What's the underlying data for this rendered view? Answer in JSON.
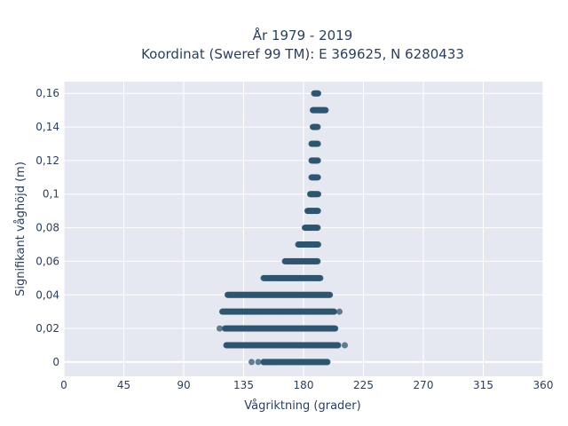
{
  "chart_data": {
    "type": "scatter",
    "title_line1": "År 1979 - 2019",
    "title_line2": "Koordinat (Sweref 99 TM): E 369625, N 6280433",
    "xlabel": "Vågriktning (grader)",
    "ylabel": "Signifikant våghöjd (m)",
    "xlim": [
      0,
      360
    ],
    "ylim": [
      -0.0085,
      0.167
    ],
    "x_ticks": [
      0,
      45,
      90,
      135,
      180,
      225,
      270,
      315,
      360
    ],
    "x_tick_labels": [
      "0",
      "45",
      "90",
      "135",
      "180",
      "225",
      "270",
      "315",
      "360"
    ],
    "y_ticks": [
      0,
      0.02,
      0.04,
      0.06,
      0.08,
      0.1,
      0.12,
      0.14,
      0.16
    ],
    "y_tick_labels": [
      "0",
      "0,02",
      "0,04",
      "0,06",
      "0,08",
      "0,1",
      "0,12",
      "0,14",
      "0,16"
    ],
    "grid": true,
    "colors": {
      "marker": "#2f5570",
      "plot_bg": "#e5e8f1",
      "grid": "#ffffff",
      "text": "#2a3f5f"
    },
    "bands": [
      {
        "y": 0.0,
        "x_min": 150,
        "x_max": 198,
        "sparse": [
          141,
          146,
          150,
          153,
          158
        ]
      },
      {
        "y": 0.01,
        "x_min": 122,
        "x_max": 206,
        "sparse": [
          211
        ]
      },
      {
        "y": 0.02,
        "x_min": 121,
        "x_max": 204,
        "sparse": [
          117
        ]
      },
      {
        "y": 0.03,
        "x_min": 119,
        "x_max": 203,
        "sparse": [
          207
        ]
      },
      {
        "y": 0.04,
        "x_min": 123,
        "x_max": 200,
        "sparse": []
      },
      {
        "y": 0.05,
        "x_min": 150,
        "x_max": 193,
        "sparse": []
      },
      {
        "y": 0.06,
        "x_min": 166,
        "x_max": 191,
        "sparse": []
      },
      {
        "y": 0.07,
        "x_min": 176,
        "x_max": 191,
        "sparse": []
      },
      {
        "y": 0.08,
        "x_min": 181,
        "x_max": 191,
        "sparse": []
      },
      {
        "y": 0.09,
        "x_min": 183,
        "x_max": 191,
        "sparse": []
      },
      {
        "y": 0.1,
        "x_min": 185,
        "x_max": 191,
        "sparse": []
      },
      {
        "y": 0.11,
        "x_min": 186,
        "x_max": 191,
        "sparse": []
      },
      {
        "y": 0.12,
        "x_min": 186,
        "x_max": 191,
        "sparse": []
      },
      {
        "y": 0.13,
        "x_min": 186,
        "x_max": 191,
        "sparse": []
      },
      {
        "y": 0.14,
        "x_min": 187,
        "x_max": 191,
        "sparse": []
      },
      {
        "y": 0.15,
        "x_min": 187,
        "x_max": 197,
        "sparse": []
      },
      {
        "y": 0.16,
        "x_min": 188,
        "x_max": 191,
        "sparse": []
      }
    ]
  }
}
